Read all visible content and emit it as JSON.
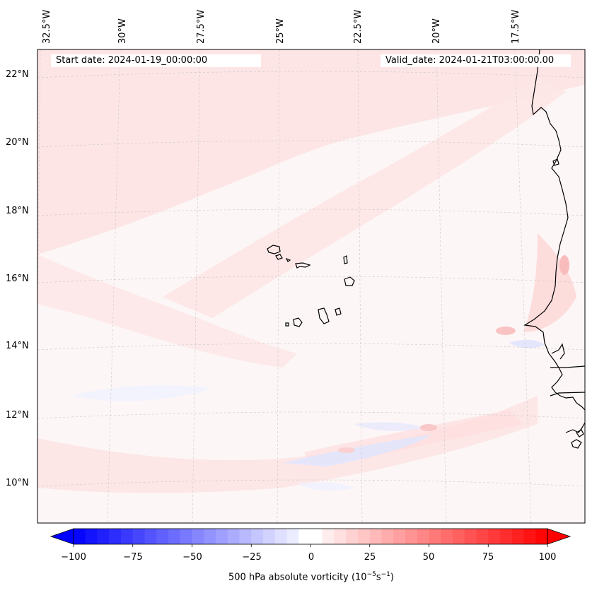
{
  "map": {
    "start_date": "Start date: 2024-01-19_00:00:00",
    "valid_date": "Valid_date: 2024-01-21T03:00:00.00",
    "longitude_labels": [
      "32.5°W",
      "30°W",
      "27.5°W",
      "25°W",
      "22.5°W",
      "20°W",
      "17.5°W"
    ],
    "latitude_labels": [
      "22°N",
      "20°N",
      "18°N",
      "16°N",
      "14°N",
      "12°N",
      "10°N"
    ],
    "field_description": "500 hPa absolute vorticity",
    "colors": {
      "positive_max": "#ff0000",
      "negative_max": "#0000ff",
      "neutral": "#ffffff",
      "coastline": "#000000",
      "gridline": "#bbbbbb"
    }
  },
  "colorbar": {
    "ticks": [
      "−100",
      "−75",
      "−50",
      "−25",
      "0",
      "25",
      "50",
      "75",
      "100"
    ],
    "tick_values": [
      -100,
      -75,
      -50,
      -25,
      0,
      25,
      50,
      75,
      100
    ],
    "range": [
      -100,
      100
    ],
    "step": 5,
    "label_main": "500 hPa absolute vorticity (10",
    "label_exp1": "−5",
    "label_mid": "s",
    "label_exp2": "−1",
    "label_end": ")"
  }
}
